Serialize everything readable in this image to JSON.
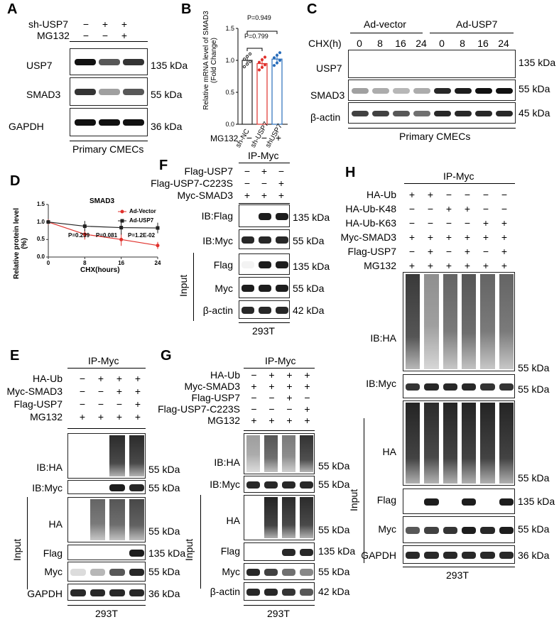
{
  "panels": {
    "A": "A",
    "B": "B",
    "C": "C",
    "D": "D",
    "E": "E",
    "F": "F",
    "G": "G",
    "H": "H"
  },
  "signs": {
    "plus": "+",
    "minus": "−"
  },
  "panelA": {
    "conditions": [
      "sh-USP7",
      "MG132"
    ],
    "signs": [
      [
        "−",
        "+",
        "+"
      ],
      [
        "−",
        "−",
        "+"
      ]
    ],
    "blots": [
      "USP7",
      "SMAD3",
      "GAPDH"
    ],
    "sizes": [
      "135 kDa",
      "55 kDa",
      "36 kDa"
    ],
    "cell": "Primary CMECs"
  },
  "panelB": {
    "ylabel": "Relative mRNA level of SMAD3 (Fold Change)",
    "ticks": [
      "0.0",
      "0.5",
      "1.0",
      "1.5"
    ],
    "categories": [
      "sh-NC",
      "sh-USP7",
      "shUSP7"
    ],
    "p1": "P=0.949",
    "p2": "P=0.799",
    "mg132_label": "MG132",
    "mg132": [
      "−",
      "−",
      "+"
    ],
    "colors": {
      "sh-NC": "#222222",
      "sh-USP7": "#e0312c",
      "shUSP7": "#2a6ebb"
    }
  },
  "panelC": {
    "groups": [
      "Ad-vector",
      "Ad-USP7"
    ],
    "chx_label": "CHX(h)",
    "timepoints": [
      "0",
      "8",
      "16",
      "24",
      "0",
      "8",
      "16",
      "24"
    ],
    "blots": [
      "USP7",
      "SMAD3",
      "β-actin"
    ],
    "sizes": [
      "135 kDa",
      "55 kDa",
      "45 kDa"
    ],
    "cell": "Primary CMECs"
  },
  "panelD": {
    "title": "SMAD3",
    "ylabel": "Relative protein level (%)",
    "xlabel": "CHX(hours)",
    "xticks": [
      "0",
      "8",
      "16",
      "24"
    ],
    "yticks": [
      "0.0",
      "0.5",
      "1.0",
      "1.5"
    ],
    "legend": [
      "Ad-Vector",
      "Ad-USP7"
    ],
    "pvals": [
      "P=0.239",
      "P=0.081",
      "P=1.2E-02"
    ]
  },
  "chart_data": {
    "type": "line",
    "title": "SMAD3",
    "xlabel": "CHX(hours)",
    "ylabel": "Relative protein level (%)",
    "x": [
      0,
      8,
      16,
      24
    ],
    "ylim": [
      0,
      1.5
    ],
    "xlim": [
      0,
      24
    ],
    "series": [
      {
        "name": "Ad-Vector",
        "color": "#e0312c",
        "values": [
          1.0,
          0.65,
          0.5,
          0.33
        ],
        "err": [
          0.08,
          0.15,
          0.18,
          0.1
        ]
      },
      {
        "name": "Ad-USP7",
        "color": "#222222",
        "values": [
          1.0,
          0.88,
          0.84,
          0.83
        ],
        "err": [
          0.06,
          0.15,
          0.2,
          0.15
        ]
      }
    ],
    "annotations": [
      "P=0.239",
      "P=0.081",
      "P=1.2E-02"
    ]
  },
  "panelE": {
    "ip": "IP-Myc",
    "conditions": [
      "HA-Ub",
      "Myc-SMAD3",
      "Flag-USP7",
      "MG132"
    ],
    "signs": [
      [
        "−",
        "+",
        "+",
        "+"
      ],
      [
        "−",
        "−",
        "+",
        "+"
      ],
      [
        "−",
        "−",
        "−",
        "+"
      ],
      [
        "+",
        "+",
        "+",
        "+"
      ]
    ],
    "blots": [
      "IB:HA",
      "IB:Myc",
      "HA",
      "Flag",
      "Myc",
      "GAPDH"
    ],
    "sizes": [
      "55 kDa",
      "55 kDa",
      "55 kDa",
      "135 kDa",
      "55 kDa",
      "36 kDa"
    ],
    "input": "Input",
    "cell": "293T"
  },
  "panelF": {
    "ip": "IP-Myc",
    "conditions": [
      "Flag-USP7",
      "Flag-USP7-C223S",
      "Myc-SMAD3"
    ],
    "signs": [
      [
        "−",
        "+",
        "−"
      ],
      [
        "−",
        "−",
        "+"
      ],
      [
        "+",
        "+",
        "+"
      ]
    ],
    "blots": [
      "IB:Flag",
      "IB:Myc",
      "Flag",
      "Myc",
      "β-actin"
    ],
    "sizes": [
      "135 kDa",
      "55 kDa",
      "135 kDa",
      "55 kDa",
      "42 kDa"
    ],
    "input": "Input",
    "cell": "293T"
  },
  "panelG": {
    "ip": "IP-Myc",
    "conditions": [
      "HA-Ub",
      "Myc-SMAD3",
      "Flag-USP7",
      "Flag-USP7-C223S",
      "MG132"
    ],
    "signs": [
      [
        "−",
        "+",
        "+",
        "+"
      ],
      [
        "+",
        "+",
        "+",
        "+"
      ],
      [
        "−",
        "−",
        "+",
        "−"
      ],
      [
        "−",
        "−",
        "−",
        "+"
      ],
      [
        "+",
        "+",
        "+",
        "+"
      ]
    ],
    "blots": [
      "IB:HA",
      "IB:Myc",
      "HA",
      "Flag",
      "Myc",
      "β-actin"
    ],
    "sizes": [
      "55 kDa",
      "55 kDa",
      "55 kDa",
      "135 kDa",
      "55 kDa",
      "42 kDa"
    ],
    "input": "Input",
    "cell": "293T"
  },
  "panelH": {
    "ip": "IP-Myc",
    "conditions": [
      "HA-Ub",
      "HA-Ub-K48",
      "HA-Ub-K63",
      "Myc-SMAD3",
      "Flag-USP7",
      "MG132"
    ],
    "signs": [
      [
        "+",
        "+",
        "−",
        "−",
        "−",
        "−"
      ],
      [
        "−",
        "−",
        "+",
        "+",
        "−",
        "−"
      ],
      [
        "−",
        "−",
        "−",
        "−",
        "+",
        "+"
      ],
      [
        "+",
        "+",
        "+",
        "+",
        "+",
        "+"
      ],
      [
        "−",
        "+",
        "−",
        "+",
        "−",
        "+"
      ],
      [
        "+",
        "+",
        "+",
        "+",
        "+",
        "+"
      ]
    ],
    "blots": [
      "IB:HA",
      "IB:Myc",
      "HA",
      "Flag",
      "Myc",
      "GAPDH"
    ],
    "sizes": [
      "55 kDa",
      "55 kDa",
      "55 kDa",
      "135 kDa",
      "55 kDa",
      "36 kDa"
    ],
    "input": "Input",
    "cell": "293T"
  }
}
